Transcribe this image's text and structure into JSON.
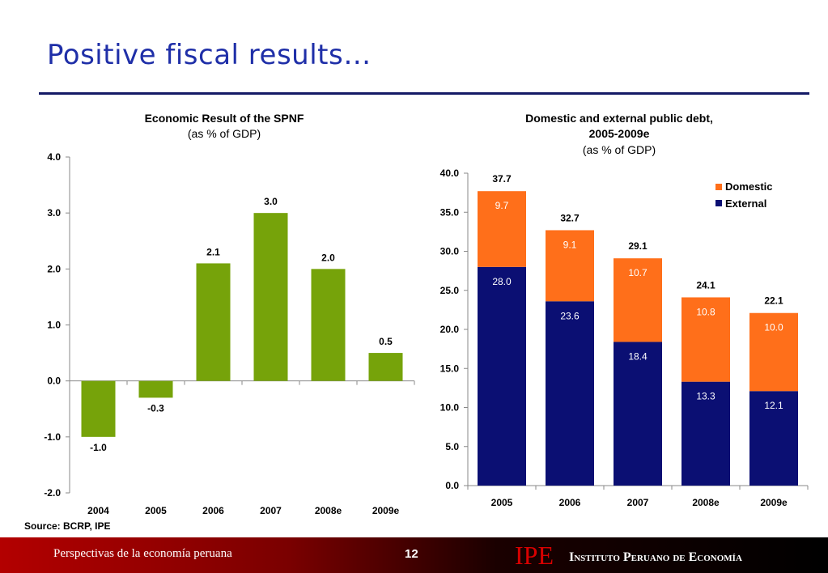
{
  "slide": {
    "title": "Positive fiscal results…",
    "source": "Source: BCRP, IPE"
  },
  "footer": {
    "left_text": "Perspectivas de la economía peruana",
    "page_number": "12",
    "logo_text": "IPE",
    "org_name": "Instituto Peruano de Economía"
  },
  "colors": {
    "title": "#1f2fa8",
    "rule": "#141a66",
    "green_bar": "#76a30a",
    "domestic": "#ff6f1a",
    "external": "#0b0f73"
  },
  "chart_data": [
    {
      "type": "bar",
      "title": "Economic Result of the SPNF",
      "subtitle": "(as % of GDP)",
      "categories": [
        "2004",
        "2005",
        "2006",
        "2007",
        "2008e",
        "2009e"
      ],
      "values": [
        -1.0,
        -0.3,
        2.1,
        3.0,
        2.0,
        0.5
      ],
      "value_labels": [
        "-1.0",
        "-0.3",
        "2.1",
        "3.0",
        "2.0",
        "0.5"
      ],
      "ylim": [
        -2.0,
        4.0
      ],
      "yticks": [
        "-2.0",
        "-1.0",
        "0.0",
        "1.0",
        "2.0",
        "3.0",
        "4.0"
      ],
      "grid": false,
      "legend": "none"
    },
    {
      "type": "bar",
      "stacked": true,
      "title": "Domestic and external public debt,",
      "title_line2": "2005-2009e",
      "subtitle": "(as % of GDP)",
      "categories": [
        "2005",
        "2006",
        "2007",
        "2008e",
        "2009e"
      ],
      "series": [
        {
          "name": "External",
          "values": [
            28.0,
            23.6,
            18.4,
            13.3,
            12.1
          ],
          "labels": [
            "28.0",
            "23.6",
            "18.4",
            "13.3",
            "12.1"
          ]
        },
        {
          "name": "Domestic",
          "values": [
            9.7,
            9.1,
            10.7,
            10.8,
            10.0
          ],
          "labels": [
            "9.7",
            "9.1",
            "10.7",
            "10.8",
            "10.0"
          ]
        }
      ],
      "totals": [
        37.7,
        32.7,
        29.1,
        24.1,
        22.1
      ],
      "total_labels": [
        "37.7",
        "32.7",
        "29.1",
        "24.1",
        "22.1"
      ],
      "ylim": [
        0.0,
        40.0
      ],
      "yticks": [
        "0.0",
        "5.0",
        "10.0",
        "15.0",
        "20.0",
        "25.0",
        "30.0",
        "35.0",
        "40.0"
      ],
      "grid": false,
      "legend": "top-right",
      "legend_entries": [
        "Domestic",
        "External"
      ]
    }
  ]
}
